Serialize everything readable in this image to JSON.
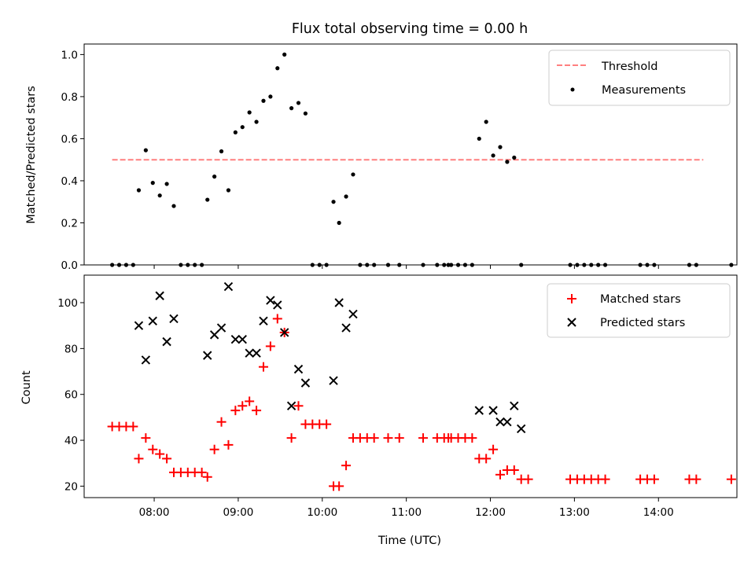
{
  "chart_data": [
    {
      "type": "scatter",
      "title": "Flux total observing time = 0.00 h",
      "xlabel": "",
      "ylabel": "Matched/Predicted stars",
      "ylim": [
        0,
        1.05
      ],
      "xlim": [
        "07:10",
        "14:56"
      ],
      "yticks": [
        "0.0",
        "0.2",
        "0.4",
        "0.6",
        "0.8",
        "1.0"
      ],
      "grid": false,
      "legend_position": "top-right",
      "threshold": {
        "name": "Threshold",
        "y": 0.5,
        "x_range": [
          "07:30",
          "14:32"
        ],
        "color": "#ff7f7f",
        "style": "dashed"
      },
      "series": [
        {
          "name": "Measurements",
          "color": "#000000",
          "marker": "dot",
          "points": [
            [
              "07:30",
              0
            ],
            [
              "07:35",
              0
            ],
            [
              "07:40",
              0
            ],
            [
              "07:45",
              0
            ],
            [
              "07:49",
              0.355
            ],
            [
              "07:54",
              0.545
            ],
            [
              "07:59",
              0.39
            ],
            [
              "08:04",
              0.33
            ],
            [
              "08:09",
              0.385
            ],
            [
              "08:14",
              0.28
            ],
            [
              "08:19",
              0
            ],
            [
              "08:24",
              0
            ],
            [
              "08:29",
              0
            ],
            [
              "08:34",
              0
            ],
            [
              "08:38",
              0.31
            ],
            [
              "08:43",
              0.42
            ],
            [
              "08:48",
              0.54
            ],
            [
              "08:53",
              0.355
            ],
            [
              "08:58",
              0.63
            ],
            [
              "09:03",
              0.655
            ],
            [
              "09:08",
              0.725
            ],
            [
              "09:13",
              0.68
            ],
            [
              "09:18",
              0.78
            ],
            [
              "09:23",
              0.8
            ],
            [
              "09:28",
              0.935
            ],
            [
              "09:33",
              1.0
            ],
            [
              "09:38",
              0.745
            ],
            [
              "09:43",
              0.77
            ],
            [
              "09:48",
              0.72
            ],
            [
              "09:53",
              0
            ],
            [
              "09:58",
              0
            ],
            [
              "10:03",
              0
            ],
            [
              "10:08",
              0.3
            ],
            [
              "10:12",
              0.2
            ],
            [
              "10:17",
              0.325
            ],
            [
              "10:22",
              0.43
            ],
            [
              "10:27",
              0
            ],
            [
              "10:32",
              0
            ],
            [
              "10:37",
              0
            ],
            [
              "10:47",
              0
            ],
            [
              "10:55",
              0
            ],
            [
              "11:12",
              0
            ],
            [
              "11:22",
              0
            ],
            [
              "11:27",
              0
            ],
            [
              "11:30",
              0
            ],
            [
              "11:32",
              0
            ],
            [
              "11:37",
              0
            ],
            [
              "11:42",
              0
            ],
            [
              "11:47",
              0
            ],
            [
              "11:52",
              0.6
            ],
            [
              "11:57",
              0.68
            ],
            [
              "12:02",
              0.52
            ],
            [
              "12:07",
              0.56
            ],
            [
              "12:12",
              0.49
            ],
            [
              "12:17",
              0.51
            ],
            [
              "12:22",
              0
            ],
            [
              "12:57",
              0
            ],
            [
              "13:02",
              0
            ],
            [
              "13:07",
              0
            ],
            [
              "13:12",
              0
            ],
            [
              "13:17",
              0
            ],
            [
              "13:22",
              0
            ],
            [
              "13:47",
              0
            ],
            [
              "13:52",
              0
            ],
            [
              "13:57",
              0
            ],
            [
              "14:22",
              0
            ],
            [
              "14:27",
              0
            ],
            [
              "14:52",
              0
            ]
          ]
        }
      ]
    },
    {
      "type": "scatter",
      "title": "",
      "xlabel": "Time (UTC)",
      "ylabel": "Count",
      "ylim": [
        15,
        112
      ],
      "xlim": [
        "07:10",
        "14:56"
      ],
      "yticks": [
        "20",
        "40",
        "60",
        "80",
        "100"
      ],
      "xticks": [
        "08:00",
        "09:00",
        "10:00",
        "11:00",
        "12:00",
        "13:00",
        "14:00"
      ],
      "grid": false,
      "legend_position": "top-right",
      "series": [
        {
          "name": "Matched stars",
          "color": "#ff0000",
          "marker": "plus",
          "points": [
            [
              "07:30",
              46
            ],
            [
              "07:35",
              46
            ],
            [
              "07:40",
              46
            ],
            [
              "07:45",
              46
            ],
            [
              "07:49",
              32
            ],
            [
              "07:54",
              41
            ],
            [
              "07:59",
              36
            ],
            [
              "08:04",
              34
            ],
            [
              "08:09",
              32
            ],
            [
              "08:14",
              26
            ],
            [
              "08:19",
              26
            ],
            [
              "08:24",
              26
            ],
            [
              "08:29",
              26
            ],
            [
              "08:34",
              26
            ],
            [
              "08:38",
              24
            ],
            [
              "08:43",
              36
            ],
            [
              "08:48",
              48
            ],
            [
              "08:53",
              38
            ],
            [
              "08:58",
              53
            ],
            [
              "09:03",
              55
            ],
            [
              "09:08",
              57
            ],
            [
              "09:13",
              53
            ],
            [
              "09:18",
              72
            ],
            [
              "09:23",
              81
            ],
            [
              "09:28",
              93
            ],
            [
              "09:33",
              87
            ],
            [
              "09:38",
              41
            ],
            [
              "09:43",
              55
            ],
            [
              "09:48",
              47
            ],
            [
              "09:53",
              47
            ],
            [
              "09:58",
              47
            ],
            [
              "10:03",
              47
            ],
            [
              "10:08",
              20
            ],
            [
              "10:12",
              20
            ],
            [
              "10:17",
              29
            ],
            [
              "10:22",
              41
            ],
            [
              "10:27",
              41
            ],
            [
              "10:32",
              41
            ],
            [
              "10:37",
              41
            ],
            [
              "10:47",
              41
            ],
            [
              "10:55",
              41
            ],
            [
              "11:12",
              41
            ],
            [
              "11:22",
              41
            ],
            [
              "11:27",
              41
            ],
            [
              "11:30",
              41
            ],
            [
              "11:32",
              41
            ],
            [
              "11:37",
              41
            ],
            [
              "11:42",
              41
            ],
            [
              "11:47",
              41
            ],
            [
              "11:52",
              32
            ],
            [
              "11:57",
              32
            ],
            [
              "12:02",
              36
            ],
            [
              "12:07",
              25
            ],
            [
              "12:12",
              27
            ],
            [
              "12:17",
              27
            ],
            [
              "12:22",
              23
            ],
            [
              "12:27",
              23
            ],
            [
              "12:57",
              23
            ],
            [
              "13:02",
              23
            ],
            [
              "13:07",
              23
            ],
            [
              "13:12",
              23
            ],
            [
              "13:17",
              23
            ],
            [
              "13:22",
              23
            ],
            [
              "13:47",
              23
            ],
            [
              "13:52",
              23
            ],
            [
              "13:57",
              23
            ],
            [
              "14:22",
              23
            ],
            [
              "14:27",
              23
            ],
            [
              "14:52",
              23
            ]
          ]
        },
        {
          "name": "Predicted stars",
          "color": "#000000",
          "marker": "x",
          "points": [
            [
              "07:49",
              90
            ],
            [
              "07:54",
              75
            ],
            [
              "07:59",
              92
            ],
            [
              "08:04",
              103
            ],
            [
              "08:09",
              83
            ],
            [
              "08:14",
              93
            ],
            [
              "08:38",
              77
            ],
            [
              "08:43",
              86
            ],
            [
              "08:48",
              89
            ],
            [
              "08:53",
              107
            ],
            [
              "08:58",
              84
            ],
            [
              "09:03",
              84
            ],
            [
              "09:08",
              78
            ],
            [
              "09:13",
              78
            ],
            [
              "09:18",
              92
            ],
            [
              "09:23",
              101
            ],
            [
              "09:28",
              99
            ],
            [
              "09:33",
              87
            ],
            [
              "09:38",
              55
            ],
            [
              "09:43",
              71
            ],
            [
              "09:48",
              65
            ],
            [
              "10:08",
              66
            ],
            [
              "10:12",
              100
            ],
            [
              "10:17",
              89
            ],
            [
              "10:22",
              95
            ],
            [
              "11:52",
              53
            ],
            [
              "12:02",
              53
            ],
            [
              "12:07",
              48
            ],
            [
              "12:12",
              48
            ],
            [
              "12:17",
              55
            ],
            [
              "12:22",
              45
            ]
          ]
        }
      ]
    }
  ]
}
